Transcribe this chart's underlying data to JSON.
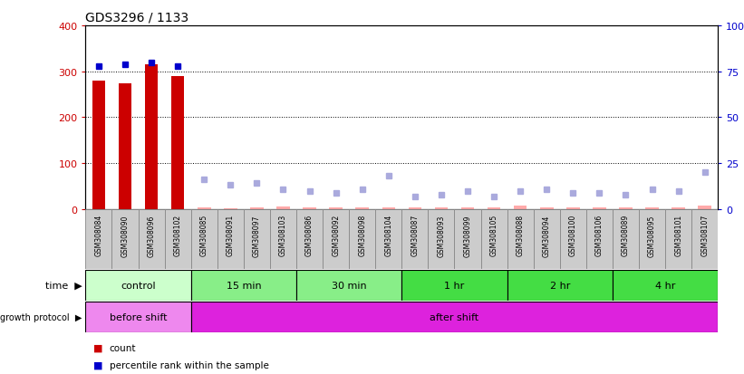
{
  "title": "GDS3296 / 1133",
  "samples": [
    "GSM308084",
    "GSM308090",
    "GSM308096",
    "GSM308102",
    "GSM308085",
    "GSM308091",
    "GSM308097",
    "GSM308103",
    "GSM308086",
    "GSM308092",
    "GSM308098",
    "GSM308104",
    "GSM308087",
    "GSM308093",
    "GSM308099",
    "GSM308105",
    "GSM308088",
    "GSM308094",
    "GSM308100",
    "GSM308106",
    "GSM308089",
    "GSM308095",
    "GSM308101",
    "GSM308107"
  ],
  "count_values": [
    280,
    274,
    315,
    290,
    4,
    2,
    3,
    5,
    4,
    3,
    3,
    4,
    3,
    3,
    3,
    3,
    8,
    3,
    3,
    3,
    3,
    3,
    3,
    7
  ],
  "count_absent": [
    false,
    false,
    false,
    false,
    true,
    true,
    true,
    true,
    true,
    true,
    true,
    true,
    true,
    true,
    true,
    true,
    true,
    true,
    true,
    true,
    true,
    true,
    true,
    true
  ],
  "rank_values": [
    78,
    79,
    80,
    78,
    16,
    13,
    14,
    11,
    10,
    9,
    11,
    18,
    7,
    8,
    10,
    7,
    10,
    11,
    9,
    9,
    8,
    11,
    10,
    20
  ],
  "rank_absent": [
    false,
    false,
    false,
    false,
    true,
    true,
    true,
    true,
    true,
    true,
    true,
    true,
    true,
    true,
    true,
    true,
    true,
    true,
    true,
    true,
    true,
    true,
    true,
    true
  ],
  "time_groups": [
    {
      "label": "control",
      "start": 0,
      "end": 4,
      "color": "#ccffcc"
    },
    {
      "label": "15 min",
      "start": 4,
      "end": 8,
      "color": "#88ee88"
    },
    {
      "label": "30 min",
      "start": 8,
      "end": 12,
      "color": "#88ee88"
    },
    {
      "label": "1 hr",
      "start": 12,
      "end": 16,
      "color": "#44dd44"
    },
    {
      "label": "2 hr",
      "start": 16,
      "end": 20,
      "color": "#44dd44"
    },
    {
      "label": "4 hr",
      "start": 20,
      "end": 24,
      "color": "#44dd44"
    }
  ],
  "growth_groups": [
    {
      "label": "before shift",
      "start": 0,
      "end": 4,
      "color": "#ee88ee"
    },
    {
      "label": "after shift",
      "start": 4,
      "end": 24,
      "color": "#dd22dd"
    }
  ],
  "bar_color_present": "#cc0000",
  "bar_color_absent": "#ffaaaa",
  "rank_color_present": "#0000cc",
  "rank_color_absent": "#aaaadd",
  "ylim_left": [
    0,
    400
  ],
  "ylim_right": [
    0,
    100
  ],
  "yticks_left": [
    0,
    100,
    200,
    300,
    400
  ],
  "yticks_right": [
    0,
    25,
    50,
    75,
    100
  ],
  "grid_values": [
    100,
    200,
    300
  ],
  "background_color": "#ffffff",
  "bar_width": 0.5,
  "marker_size": 5,
  "cell_color": "#cccccc",
  "cell_edge_color": "#888888"
}
